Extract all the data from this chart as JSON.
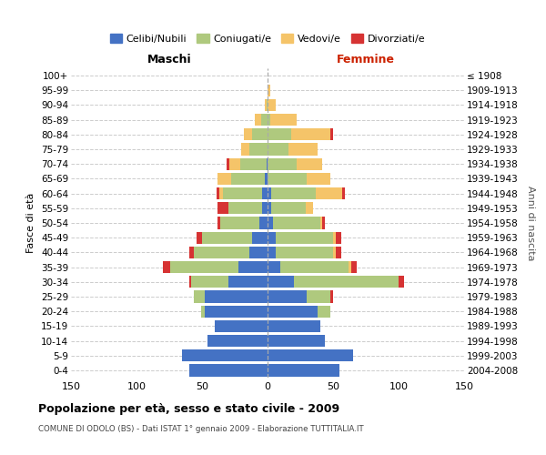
{
  "age_groups": [
    "0-4",
    "5-9",
    "10-14",
    "15-19",
    "20-24",
    "25-29",
    "30-34",
    "35-39",
    "40-44",
    "45-49",
    "50-54",
    "55-59",
    "60-64",
    "65-69",
    "70-74",
    "75-79",
    "80-84",
    "85-89",
    "90-94",
    "95-99",
    "100+"
  ],
  "birth_years": [
    "2004-2008",
    "1999-2003",
    "1994-1998",
    "1989-1993",
    "1984-1988",
    "1979-1983",
    "1974-1978",
    "1969-1973",
    "1964-1968",
    "1959-1963",
    "1954-1958",
    "1949-1953",
    "1944-1948",
    "1939-1943",
    "1934-1938",
    "1929-1933",
    "1924-1928",
    "1919-1923",
    "1914-1918",
    "1909-1913",
    "≤ 1908"
  ],
  "male": {
    "celibi": [
      60,
      65,
      46,
      40,
      48,
      48,
      30,
      22,
      14,
      12,
      6,
      4,
      4,
      2,
      1,
      0,
      0,
      0,
      0,
      0,
      0
    ],
    "coniugati": [
      0,
      0,
      0,
      0,
      3,
      8,
      28,
      52,
      42,
      38,
      30,
      26,
      30,
      26,
      20,
      14,
      12,
      5,
      1,
      0,
      0
    ],
    "vedovi": [
      0,
      0,
      0,
      0,
      0,
      0,
      0,
      0,
      0,
      0,
      0,
      0,
      3,
      10,
      8,
      6,
      6,
      5,
      1,
      0,
      0
    ],
    "divorziati": [
      0,
      0,
      0,
      0,
      0,
      0,
      2,
      6,
      4,
      4,
      2,
      8,
      2,
      0,
      2,
      0,
      0,
      0,
      0,
      0,
      0
    ]
  },
  "female": {
    "nubili": [
      55,
      65,
      44,
      40,
      38,
      30,
      20,
      10,
      6,
      6,
      4,
      3,
      3,
      0,
      0,
      0,
      0,
      0,
      0,
      0,
      0
    ],
    "coniugate": [
      0,
      0,
      0,
      0,
      10,
      18,
      80,
      52,
      44,
      44,
      36,
      26,
      34,
      30,
      22,
      16,
      18,
      2,
      0,
      0,
      0
    ],
    "vedove": [
      0,
      0,
      0,
      0,
      0,
      0,
      0,
      2,
      2,
      2,
      2,
      6,
      20,
      18,
      20,
      22,
      30,
      20,
      6,
      2,
      0
    ],
    "divorziate": [
      0,
      0,
      0,
      0,
      0,
      2,
      4,
      4,
      4,
      4,
      2,
      0,
      2,
      0,
      0,
      0,
      2,
      0,
      0,
      0,
      0
    ]
  },
  "colors": {
    "celibi": "#4472c4",
    "coniugati": "#afc97e",
    "vedovi": "#f5c469",
    "divorziati": "#d63333"
  },
  "legend_labels": [
    "Celibi/Nubili",
    "Coniugati/e",
    "Vedovi/e",
    "Divorziati/e"
  ],
  "title": "Popolazione per età, sesso e stato civile - 2009",
  "subtitle": "COMUNE DI ODOLO (BS) - Dati ISTAT 1° gennaio 2009 - Elaborazione TUTTITALIA.IT",
  "xlabel_left": "Maschi",
  "xlabel_right": "Femmine",
  "ylabel_left": "Fasce di età",
  "ylabel_right": "Anni di nascita",
  "xlim": 150,
  "background_color": "#ffffff",
  "grid_color": "#cccccc"
}
